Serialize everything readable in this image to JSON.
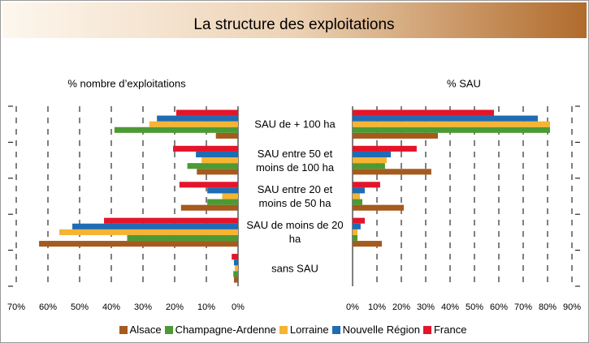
{
  "title": "La structure des exploitations",
  "categories": [
    "SAU de + 100 ha",
    "SAU entre 50 et moins de 100 ha",
    "SAU entre 20 et moins de 50 ha",
    "SAU de moins de 20 ha",
    "sans SAU"
  ],
  "chart_data": [
    {
      "type": "bar",
      "orientation": "horizontal",
      "reversed": true,
      "subtitle": "% nombre d’exploitations",
      "xlim": [
        0,
        70
      ],
      "xticks": [
        {
          "value": 70,
          "label": "70%"
        },
        {
          "value": 60,
          "label": "60%"
        },
        {
          "value": 50,
          "label": "50%"
        },
        {
          "value": 40,
          "label": "40%"
        },
        {
          "value": 30,
          "label": "30%"
        },
        {
          "value": 20,
          "label": "20%"
        },
        {
          "value": 10,
          "label": "10%"
        },
        {
          "value": 0,
          "label": "0%"
        }
      ],
      "series": [
        {
          "name": "Alsace",
          "color": "#a65a1e",
          "values": [
            7,
            13,
            18,
            62.8,
            1.3
          ]
        },
        {
          "name": "Champagne-Ardenne",
          "color": "#4c9a34",
          "values": [
            39,
            16,
            9.7,
            35,
            1.5
          ]
        },
        {
          "name": "Lorraine",
          "color": "#f5b431",
          "values": [
            28,
            11.5,
            5,
            56.4,
            1
          ]
        },
        {
          "name": "Nouvelle Région",
          "color": "#1f6cb4",
          "values": [
            25.6,
            13.3,
            9.7,
            52.3,
            1.3
          ]
        },
        {
          "name": "France",
          "color": "#e3152b",
          "values": [
            19.5,
            20.5,
            18.5,
            42.3,
            2
          ]
        }
      ]
    },
    {
      "type": "bar",
      "orientation": "horizontal",
      "reversed": false,
      "subtitle": "% SAU",
      "xlim": [
        0,
        90
      ],
      "xticks": [
        {
          "value": 0,
          "label": "0%"
        },
        {
          "value": 10,
          "label": "10%"
        },
        {
          "value": 20,
          "label": "20%"
        },
        {
          "value": 30,
          "label": "30%"
        },
        {
          "value": 40,
          "label": "40%"
        },
        {
          "value": 50,
          "label": "50%"
        },
        {
          "value": 60,
          "label": "60%"
        },
        {
          "value": 70,
          "label": "70%"
        },
        {
          "value": 80,
          "label": "80%"
        },
        {
          "value": 90,
          "label": "90%"
        }
      ],
      "series": [
        {
          "color": "#a65a1e",
          "values": [
            35,
            32.3,
            21,
            12,
            0
          ]
        },
        {
          "color": "#4c9a34",
          "values": [
            81,
            13.3,
            4,
            2,
            0
          ]
        },
        {
          "color": "#f5b431",
          "values": [
            81,
            14,
            3,
            2,
            0
          ]
        },
        {
          "color": "#1f6cb4",
          "values": [
            76,
            15.7,
            5,
            3.3,
            0
          ]
        },
        {
          "color": "#e3152b",
          "values": [
            58,
            26.3,
            11.3,
            5,
            0
          ]
        }
      ]
    }
  ]
}
